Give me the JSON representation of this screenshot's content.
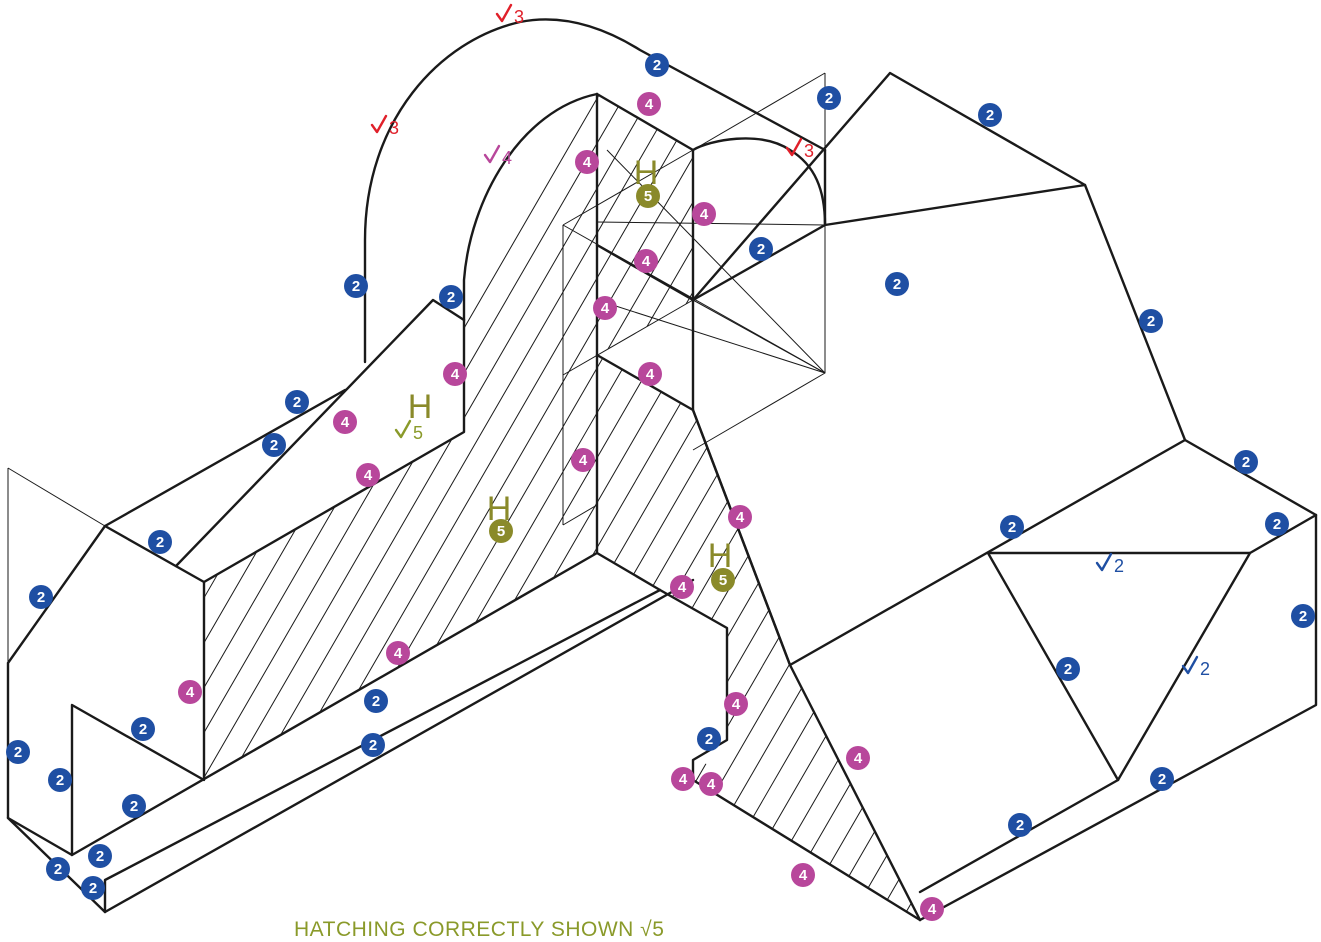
{
  "colors": {
    "blue_badge": "#1f4fa3",
    "magenta_badge": "#b8479b",
    "olive_badge": "#8a8a2a",
    "red_tick": "#e0202a",
    "blue_tick": "#1f4fa3",
    "magenta_tick": "#b8479b",
    "olive_tick": "#8a9a2a",
    "line": "#1a1a1a"
  },
  "marks": {
    "blue": "2",
    "magenta": "4",
    "olive": "5",
    "hatch_letter": "H"
  },
  "ticks": {
    "red": "3",
    "magenta": "4",
    "blue": "2",
    "olive": "5"
  },
  "caption": "HATCHING CORRECTLY SHOWN √5"
}
